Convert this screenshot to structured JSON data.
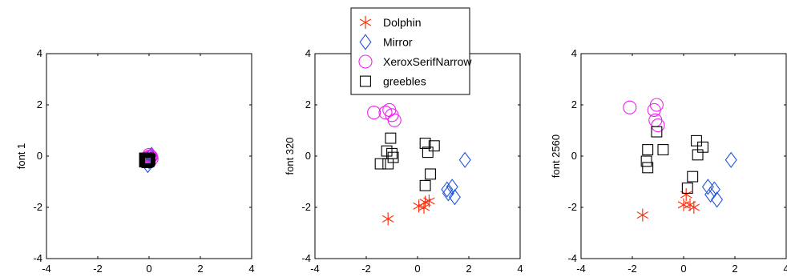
{
  "legend": {
    "placement": "top-center",
    "entries": [
      {
        "name": "Dolphin",
        "marker": "asterisk",
        "color": "#ff3311"
      },
      {
        "name": "Mirror",
        "marker": "diamond",
        "color": "#2255dd"
      },
      {
        "name": "XeroxSerifNarrow",
        "marker": "circle",
        "color": "#ee22ee"
      },
      {
        "name": "greebles",
        "marker": "square",
        "color": "#000000"
      }
    ]
  },
  "chart_data": [
    {
      "type": "scatter",
      "ylabel": "font 1",
      "xlim": [
        -4,
        4
      ],
      "ylim": [
        -4,
        4
      ],
      "xticks": [
        -4,
        -2,
        0,
        2,
        4
      ],
      "yticks": [
        -4,
        -2,
        0,
        2,
        4
      ],
      "grid": false,
      "series": [
        {
          "name": "Dolphin",
          "points": [
            [
              -0.05,
              -0.1
            ],
            [
              0.0,
              -0.15
            ],
            [
              0.05,
              -0.05
            ],
            [
              -0.1,
              -0.2
            ],
            [
              0.02,
              -0.12
            ]
          ]
        },
        {
          "name": "Mirror",
          "points": [
            [
              0.1,
              0.05
            ],
            [
              0.12,
              -0.05
            ],
            [
              0.05,
              0.0
            ],
            [
              -0.05,
              -0.35
            ],
            [
              0.0,
              -0.2
            ]
          ]
        },
        {
          "name": "XeroxSerifNarrow",
          "points": [
            [
              0.05,
              0.0
            ],
            [
              -0.05,
              -0.05
            ],
            [
              0.1,
              -0.1
            ],
            [
              0.0,
              0.05
            ],
            [
              0.08,
              -0.02
            ]
          ]
        },
        {
          "name": "greebles",
          "points": [
            [
              -0.1,
              -0.15
            ],
            [
              -0.05,
              -0.2
            ],
            [
              0.0,
              -0.1
            ],
            [
              -0.08,
              -0.25
            ],
            [
              -0.02,
              -0.18
            ],
            [
              0.03,
              -0.12
            ],
            [
              -0.12,
              -0.22
            ],
            [
              0.0,
              -0.2
            ],
            [
              -0.06,
              -0.1
            ],
            [
              0.02,
              -0.16
            ]
          ]
        }
      ]
    },
    {
      "type": "scatter",
      "ylabel": "font 320",
      "xlim": [
        -4,
        4
      ],
      "ylim": [
        -4,
        4
      ],
      "xticks": [
        -4,
        -2,
        0,
        2,
        4
      ],
      "yticks": [
        -4,
        -2,
        0,
        2,
        4
      ],
      "grid": false,
      "series": [
        {
          "name": "Dolphin",
          "points": [
            [
              -1.15,
              -2.45
            ],
            [
              0.05,
              -1.95
            ],
            [
              0.3,
              -1.8
            ],
            [
              0.45,
              -1.75
            ],
            [
              0.25,
              -2.0
            ]
          ]
        },
        {
          "name": "Mirror",
          "points": [
            [
              1.85,
              -0.15
            ],
            [
              1.15,
              -1.3
            ],
            [
              1.35,
              -1.2
            ],
            [
              1.2,
              -1.45
            ],
            [
              1.45,
              -1.6
            ]
          ]
        },
        {
          "name": "XeroxSerifNarrow",
          "points": [
            [
              -1.7,
              1.7
            ],
            [
              -1.25,
              1.7
            ],
            [
              -1.0,
              1.6
            ],
            [
              -0.9,
              1.4
            ],
            [
              -1.1,
              1.8
            ]
          ]
        },
        {
          "name": "greebles",
          "points": [
            [
              -1.05,
              0.7
            ],
            [
              -1.2,
              0.2
            ],
            [
              -1.0,
              0.1
            ],
            [
              -0.95,
              -0.05
            ],
            [
              -1.45,
              -0.3
            ],
            [
              -1.15,
              -0.3
            ],
            [
              0.3,
              0.5
            ],
            [
              0.65,
              0.4
            ],
            [
              0.4,
              0.15
            ],
            [
              0.5,
              -0.7
            ],
            [
              0.3,
              -1.15
            ]
          ]
        }
      ]
    },
    {
      "type": "scatter",
      "ylabel": "font 2560",
      "xlim": [
        -4,
        4
      ],
      "ylim": [
        -4,
        4
      ],
      "xticks": [
        -4,
        -2,
        0,
        2,
        4
      ],
      "yticks": [
        -4,
        -2,
        0,
        2,
        4
      ],
      "grid": false,
      "series": [
        {
          "name": "Dolphin",
          "points": [
            [
              -1.6,
              -2.3
            ],
            [
              0.0,
              -1.9
            ],
            [
              0.25,
              -1.9
            ],
            [
              0.4,
              -2.0
            ],
            [
              0.1,
              -1.5
            ]
          ]
        },
        {
          "name": "Mirror",
          "points": [
            [
              1.85,
              -0.15
            ],
            [
              0.95,
              -1.2
            ],
            [
              1.2,
              -1.3
            ],
            [
              1.05,
              -1.5
            ],
            [
              1.3,
              -1.7
            ]
          ]
        },
        {
          "name": "XeroxSerifNarrow",
          "points": [
            [
              -2.1,
              1.9
            ],
            [
              -1.05,
              2.0
            ],
            [
              -1.1,
              1.4
            ],
            [
              -1.0,
              1.2
            ],
            [
              -1.15,
              1.8
            ]
          ]
        },
        {
          "name": "greebles",
          "points": [
            [
              -1.05,
              0.95
            ],
            [
              -1.4,
              0.25
            ],
            [
              -0.8,
              0.25
            ],
            [
              -1.45,
              -0.2
            ],
            [
              -1.4,
              -0.45
            ],
            [
              0.5,
              0.6
            ],
            [
              0.75,
              0.35
            ],
            [
              0.55,
              0.05
            ],
            [
              0.35,
              -0.8
            ],
            [
              0.15,
              -1.25
            ]
          ]
        }
      ]
    }
  ]
}
